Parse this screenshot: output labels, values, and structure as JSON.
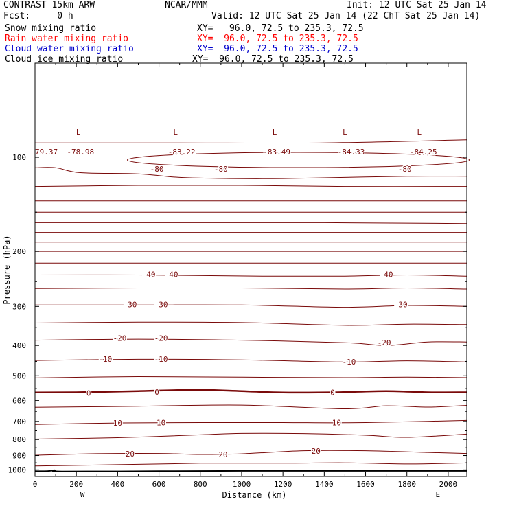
{
  "header": {
    "title": "CONTRAST 15km ARW",
    "org": "NCAR/MMM",
    "init": "Init: 12 UTC Sat 25 Jan 14",
    "fcst": "Fcst:     0 h",
    "valid": "Valid: 12 UTC Sat 25 Jan 14 (22 ChT Sat 25 Jan 14)"
  },
  "fields": [
    {
      "name": "Snow mixing ratio",
      "xy": "XY=   96.0, 72.5 to 235.3, 72.5",
      "color": "#000000"
    },
    {
      "name": "Rain water mixing ratio",
      "xy": "XY=  96.0, 72.5 to 235.3, 72.5",
      "color": "#ff0000"
    },
    {
      "name": "Cloud water mixing ratio",
      "xy": "XY=  96.0, 72.5 to 235.3, 72.5",
      "color": "#0000cc"
    },
    {
      "name": "Cloud ice mixing ratio",
      "xy": "XY=  96.0, 72.5 to 235.3, 72.5",
      "color": "#000000"
    }
  ],
  "chart_data": {
    "type": "line",
    "xlabel": "Distance (km)",
    "ylabel": "Pressure (hPa)",
    "xlim": [
      0,
      2090
    ],
    "ylim": [
      1050,
      50
    ],
    "y_scale": "log",
    "x_ticks": [
      0,
      200,
      400,
      600,
      800,
      1000,
      1200,
      1400,
      1600,
      1800,
      2000
    ],
    "y_ticks": [
      100,
      200,
      300,
      400,
      500,
      600,
      700,
      800,
      900,
      1000
    ],
    "x_end_labels": {
      "left": "W",
      "right": "E"
    },
    "contour_color": "#7a0a0a",
    "contour_interval_degC": 5,
    "zero_isotherm": {
      "values": [
        [
          0,
          566
        ],
        [
          200,
          565
        ],
        [
          500,
          560
        ],
        [
          780,
          555
        ],
        [
          1000,
          560
        ],
        [
          1200,
          566
        ],
        [
          1450,
          565
        ],
        [
          1700,
          560
        ],
        [
          1900,
          565
        ],
        [
          2090,
          565
        ]
      ]
    },
    "isotherms": [
      {
        "values": [
          [
            0,
            90
          ],
          [
            700,
            90
          ],
          [
            1400,
            90
          ],
          [
            2090,
            88
          ]
        ]
      },
      {
        "values": [
          [
            0,
            108
          ],
          [
            100,
            108
          ],
          [
            220,
            112
          ],
          [
            500,
            113
          ],
          [
            700,
            116
          ],
          [
            950,
            117
          ],
          [
            1200,
            117
          ],
          [
            1500,
            116
          ],
          [
            1800,
            115
          ],
          [
            2090,
            115
          ]
        ]
      },
      {
        "values": [
          [
            0,
            124
          ],
          [
            500,
            123
          ],
          [
            1000,
            123
          ],
          [
            1500,
            124
          ],
          [
            2090,
            124
          ]
        ]
      },
      {
        "values": [
          [
            0,
            138
          ],
          [
            700,
            138
          ],
          [
            1400,
            138
          ],
          [
            2090,
            138
          ]
        ]
      },
      {
        "values": [
          [
            0,
            150
          ],
          [
            700,
            150
          ],
          [
            1400,
            150
          ],
          [
            2090,
            150
          ]
        ]
      },
      {
        "values": [
          [
            0,
            162
          ],
          [
            700,
            162
          ],
          [
            1400,
            162
          ],
          [
            2090,
            163
          ]
        ]
      },
      {
        "values": [
          [
            0,
            174
          ],
          [
            700,
            174
          ],
          [
            1400,
            174
          ],
          [
            2090,
            174
          ]
        ]
      },
      {
        "values": [
          [
            0,
            187
          ],
          [
            700,
            187
          ],
          [
            1400,
            187
          ],
          [
            2090,
            187
          ]
        ]
      },
      {
        "values": [
          [
            0,
            200
          ],
          [
            700,
            200
          ],
          [
            1400,
            200
          ],
          [
            2090,
            200
          ]
        ]
      },
      {
        "values": [
          [
            0,
            218
          ],
          [
            700,
            218
          ],
          [
            1400,
            218
          ],
          [
            2090,
            218
          ]
        ]
      },
      {
        "values": [
          [
            0,
            238
          ],
          [
            500,
            238
          ],
          [
            1100,
            240
          ],
          [
            1500,
            240
          ],
          [
            1800,
            238
          ],
          [
            2090,
            240
          ]
        ]
      },
      {
        "values": [
          [
            0,
            263
          ],
          [
            500,
            262
          ],
          [
            1000,
            262
          ],
          [
            1500,
            264
          ],
          [
            1800,
            262
          ],
          [
            2090,
            264
          ]
        ]
      },
      {
        "values": [
          [
            0,
            297
          ],
          [
            500,
            297
          ],
          [
            1000,
            297
          ],
          [
            1500,
            302
          ],
          [
            1800,
            298
          ],
          [
            2090,
            300
          ]
        ]
      },
      {
        "values": [
          [
            0,
            339
          ],
          [
            500,
            337
          ],
          [
            1000,
            338
          ],
          [
            1500,
            345
          ],
          [
            1800,
            342
          ],
          [
            2090,
            343
          ]
        ]
      },
      {
        "values": [
          [
            0,
            385
          ],
          [
            500,
            382
          ],
          [
            1000,
            385
          ],
          [
            1500,
            392
          ],
          [
            1700,
            400
          ],
          [
            1900,
            390
          ],
          [
            2090,
            390
          ]
        ]
      },
      {
        "values": [
          [
            0,
            447
          ],
          [
            500,
            443
          ],
          [
            1000,
            445
          ],
          [
            1500,
            452
          ],
          [
            1800,
            448
          ],
          [
            2090,
            452
          ]
        ]
      },
      {
        "values": [
          [
            0,
            508
          ],
          [
            500,
            503
          ],
          [
            1000,
            505
          ],
          [
            1500,
            507
          ],
          [
            1800,
            505
          ],
          [
            2090,
            507
          ]
        ]
      },
      {
        "values": [
          [
            0,
            631
          ],
          [
            500,
            626
          ],
          [
            1000,
            621
          ],
          [
            1500,
            638
          ],
          [
            1700,
            624
          ],
          [
            1900,
            630
          ],
          [
            2090,
            622
          ]
        ]
      },
      {
        "values": [
          [
            0,
            716
          ],
          [
            400,
            708
          ],
          [
            800,
            706
          ],
          [
            1200,
            706
          ],
          [
            1500,
            707
          ],
          [
            1800,
            702
          ],
          [
            2090,
            695
          ]
        ]
      },
      {
        "values": [
          [
            0,
            797
          ],
          [
            400,
            789
          ],
          [
            800,
            773
          ],
          [
            1000,
            765
          ],
          [
            1300,
            766
          ],
          [
            1600,
            775
          ],
          [
            1800,
            787
          ],
          [
            2090,
            769
          ]
        ]
      },
      {
        "values": [
          [
            0,
            898
          ],
          [
            300,
            888
          ],
          [
            600,
            887
          ],
          [
            800,
            893
          ],
          [
            1000,
            889
          ],
          [
            1300,
            869
          ],
          [
            1600,
            869
          ],
          [
            1900,
            880
          ],
          [
            2090,
            887
          ]
        ]
      },
      {
        "values": [
          [
            0,
            972
          ],
          [
            400,
            963
          ],
          [
            800,
            953
          ],
          [
            1200,
            953
          ],
          [
            1500,
            950
          ],
          [
            1800,
            958
          ],
          [
            2090,
            951
          ]
        ]
      }
    ],
    "surface": {
      "values": [
        [
          0,
          1010
        ],
        [
          60,
          1010
        ],
        [
          95,
          1003
        ],
        [
          130,
          1012
        ],
        [
          600,
          1010
        ],
        [
          1000,
          1008
        ],
        [
          1500,
          1008
        ],
        [
          2090,
          1008
        ]
      ]
    },
    "labels": [
      {
        "text": "L",
        "x": 210,
        "p": 83
      },
      {
        "text": "L",
        "x": 680,
        "p": 83
      },
      {
        "text": "L",
        "x": 1160,
        "p": 83
      },
      {
        "text": "L",
        "x": 1500,
        "p": 83
      },
      {
        "text": "L",
        "x": 1860,
        "p": 83
      },
      {
        "text": "79.37",
        "x": 55,
        "p": 96
      },
      {
        "text": "-78.98",
        "x": 220,
        "p": 96
      },
      {
        "text": "-83.22",
        "x": 710,
        "p": 96
      },
      {
        "text": "-83.49",
        "x": 1170,
        "p": 96
      },
      {
        "text": "-84.33",
        "x": 1530,
        "p": 96
      },
      {
        "text": "-84.25",
        "x": 1880,
        "p": 96
      },
      {
        "text": "-80",
        "x": 590,
        "p": 109
      },
      {
        "text": "-80",
        "x": 900,
        "p": 109
      },
      {
        "text": "-80",
        "x": 1790,
        "p": 109
      },
      {
        "text": "-40",
        "x": 550,
        "p": 237
      },
      {
        "text": "-40",
        "x": 660,
        "p": 237
      },
      {
        "text": "-40",
        "x": 1700,
        "p": 237
      },
      {
        "text": "-30",
        "x": 460,
        "p": 296
      },
      {
        "text": "-30",
        "x": 610,
        "p": 296
      },
      {
        "text": "-30",
        "x": 1770,
        "p": 296
      },
      {
        "text": "-20",
        "x": 410,
        "p": 379
      },
      {
        "text": "-20",
        "x": 610,
        "p": 379
      },
      {
        "text": "-20",
        "x": 1690,
        "p": 392
      },
      {
        "text": "-10",
        "x": 340,
        "p": 442
      },
      {
        "text": "-10",
        "x": 610,
        "p": 442
      },
      {
        "text": "-10",
        "x": 1520,
        "p": 451
      },
      {
        "text": "0",
        "x": 260,
        "p": 568
      },
      {
        "text": "0",
        "x": 590,
        "p": 563
      },
      {
        "text": "0",
        "x": 1440,
        "p": 565
      },
      {
        "text": "10",
        "x": 400,
        "p": 708
      },
      {
        "text": "10",
        "x": 610,
        "p": 706
      },
      {
        "text": "10",
        "x": 1460,
        "p": 706
      },
      {
        "text": "20",
        "x": 460,
        "p": 888
      },
      {
        "text": "20",
        "x": 910,
        "p": 893
      },
      {
        "text": "20",
        "x": 1360,
        "p": 870
      }
    ]
  }
}
